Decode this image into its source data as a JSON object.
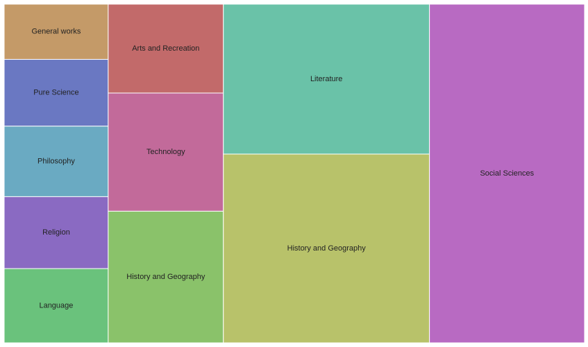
{
  "chart_data": {
    "type": "treemap",
    "title": "",
    "columns": [
      {
        "cells": [
          {
            "name": "General works",
            "value": 119,
            "color": "#c49a68"
          },
          {
            "name": "Pure Science",
            "value": 144,
            "color": "#6a78c2"
          },
          {
            "name": "Philosophy",
            "value": 152,
            "color": "#6aaac2"
          },
          {
            "name": "Religion",
            "value": 155,
            "color": "#8a6ac2"
          },
          {
            "name": "Language",
            "value": 160,
            "color": "#6ac27c"
          }
        ]
      },
      {
        "cells": [
          {
            "name": "Arts and Recreation",
            "value": 212,
            "color": "#c26a6a"
          },
          {
            "name": "Technology",
            "value": 282,
            "color": "#c26a9a"
          },
          {
            "name": "History and Geography",
            "value": 314,
            "color": "#8ac26a"
          }
        ]
      },
      {
        "cells": [
          {
            "name": "Literature",
            "value": 640,
            "color": "#6ac2a8"
          },
          {
            "name": "History and Geography",
            "value": 806,
            "color": "#b8c26a"
          }
        ]
      },
      {
        "cells": [
          {
            "name": "Social Sciences",
            "value": 1088,
            "color": "#b86ac2"
          }
        ]
      }
    ]
  }
}
